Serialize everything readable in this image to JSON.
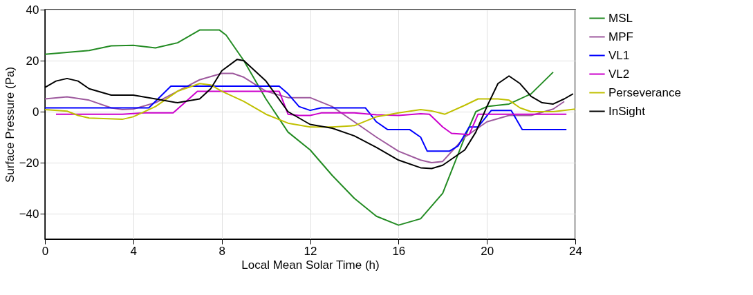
{
  "chart_data": {
    "type": "line",
    "xlabel": "Local Mean Solar Time (h)",
    "ylabel": "Surface Pressure (Pa)",
    "xlim": [
      0,
      24
    ],
    "xticks": [
      0,
      4,
      8,
      12,
      16,
      20,
      24
    ],
    "ylim": [
      -50,
      40
    ],
    "yticks": [
      -40,
      -20,
      0,
      20,
      40
    ],
    "grid": true,
    "legend": "right",
    "marker": "none",
    "line_style": "solid",
    "series": [
      {
        "name": "MSL",
        "color": "#228b22",
        "x": [
          0,
          2,
          3,
          4,
          5,
          6,
          7,
          7.9,
          8.2,
          9,
          10,
          11,
          12,
          13,
          14,
          15,
          16,
          17,
          18,
          19,
          19.5,
          20,
          21,
          22,
          23
        ],
        "values": [
          22.5,
          24,
          25.8,
          26,
          25,
          27,
          32,
          32,
          30,
          20,
          5,
          -8,
          -15,
          -25,
          -34,
          -41,
          -44.5,
          -42,
          -32,
          -10,
          0,
          2,
          3,
          7,
          15.5
        ]
      },
      {
        "name": "MPF",
        "color": "#9e5a9e",
        "x": [
          0,
          1,
          2,
          3,
          3.5,
          4,
          5,
          6,
          7,
          8,
          8.5,
          9,
          10,
          11,
          12,
          13,
          14,
          15,
          16,
          17,
          17.5,
          18,
          19,
          20,
          21,
          22,
          23,
          23.5
        ],
        "values": [
          5,
          5.8,
          4.5,
          1.5,
          0.8,
          1,
          3.5,
          8,
          12.5,
          15,
          15,
          13.5,
          8,
          5.5,
          5.5,
          2,
          -4,
          -10,
          -15.5,
          -19,
          -20,
          -19.5,
          -10,
          -4,
          -1.5,
          -1.5,
          1,
          4
        ]
      },
      {
        "name": "VL1",
        "color": "#0000ff",
        "x": [
          0,
          4.7,
          5.7,
          10.6,
          11,
          11.5,
          12,
          12.5,
          14.5,
          15,
          15.5,
          16.5,
          17,
          17.3,
          18.3,
          18.7,
          19.2,
          19.6,
          20.2,
          21.1,
          21.6,
          23.6
        ],
        "values": [
          1.5,
          1.5,
          10,
          10,
          7,
          2,
          0.5,
          1.5,
          1.5,
          -4,
          -7,
          -7,
          -10,
          -15.5,
          -15.5,
          -13.4,
          -6,
          -6,
          0.5,
          0.5,
          -7,
          -7
        ]
      },
      {
        "name": "VL2",
        "color": "#cc00cc",
        "x": [
          0.5,
          3.5,
          4.5,
          5.8,
          6.9,
          10.6,
          11,
          11.5,
          12,
          12.5,
          14,
          15,
          16,
          17,
          17.4,
          18,
          18.4,
          19.2,
          19.6,
          23.6
        ],
        "values": [
          -1,
          -1,
          -0.5,
          -0.5,
          8,
          8,
          -1,
          -1.5,
          -1.5,
          -0.5,
          -0.5,
          -1.2,
          -1.5,
          -0.8,
          -1,
          -6,
          -8.5,
          -9,
          -1,
          -1
        ]
      },
      {
        "name": "Perseverance",
        "color": "#c0c000",
        "x": [
          0,
          1,
          1.5,
          2,
          3.5,
          4,
          5,
          6,
          7,
          7.5,
          8,
          9,
          10,
          11,
          12,
          13,
          14,
          15,
          16,
          17,
          17.5,
          18.1,
          19,
          19.6,
          20.5,
          21,
          21.5,
          22,
          23,
          24
        ],
        "values": [
          0.8,
          0.2,
          -1.5,
          -2.5,
          -3,
          -2,
          2,
          8,
          11,
          10.5,
          8,
          4,
          -1,
          -4.5,
          -6,
          -6,
          -5.5,
          -2,
          -0.5,
          0.8,
          0.3,
          -1,
          2.5,
          5,
          5,
          4.5,
          1.5,
          0,
          0,
          1
        ]
      },
      {
        "name": "InSight",
        "color": "#000000",
        "x": [
          0,
          0.5,
          1,
          1.5,
          2,
          3,
          4,
          5,
          6,
          7,
          7.5,
          8,
          8.7,
          9,
          10,
          11,
          12,
          13,
          14,
          15,
          16,
          17,
          17.5,
          18,
          19,
          19.5,
          20,
          20.5,
          21,
          21.5,
          22,
          22.5,
          23,
          23.5,
          23.9
        ],
        "values": [
          9.5,
          12,
          13,
          12,
          9,
          6.5,
          6.5,
          5,
          3.5,
          5,
          9,
          16,
          20.5,
          20,
          12,
          0,
          -5,
          -6.5,
          -9.5,
          -14,
          -19,
          -22,
          -22.3,
          -21,
          -15,
          -8,
          2,
          11,
          14,
          11,
          6,
          3.5,
          3,
          5,
          7
        ]
      }
    ]
  }
}
